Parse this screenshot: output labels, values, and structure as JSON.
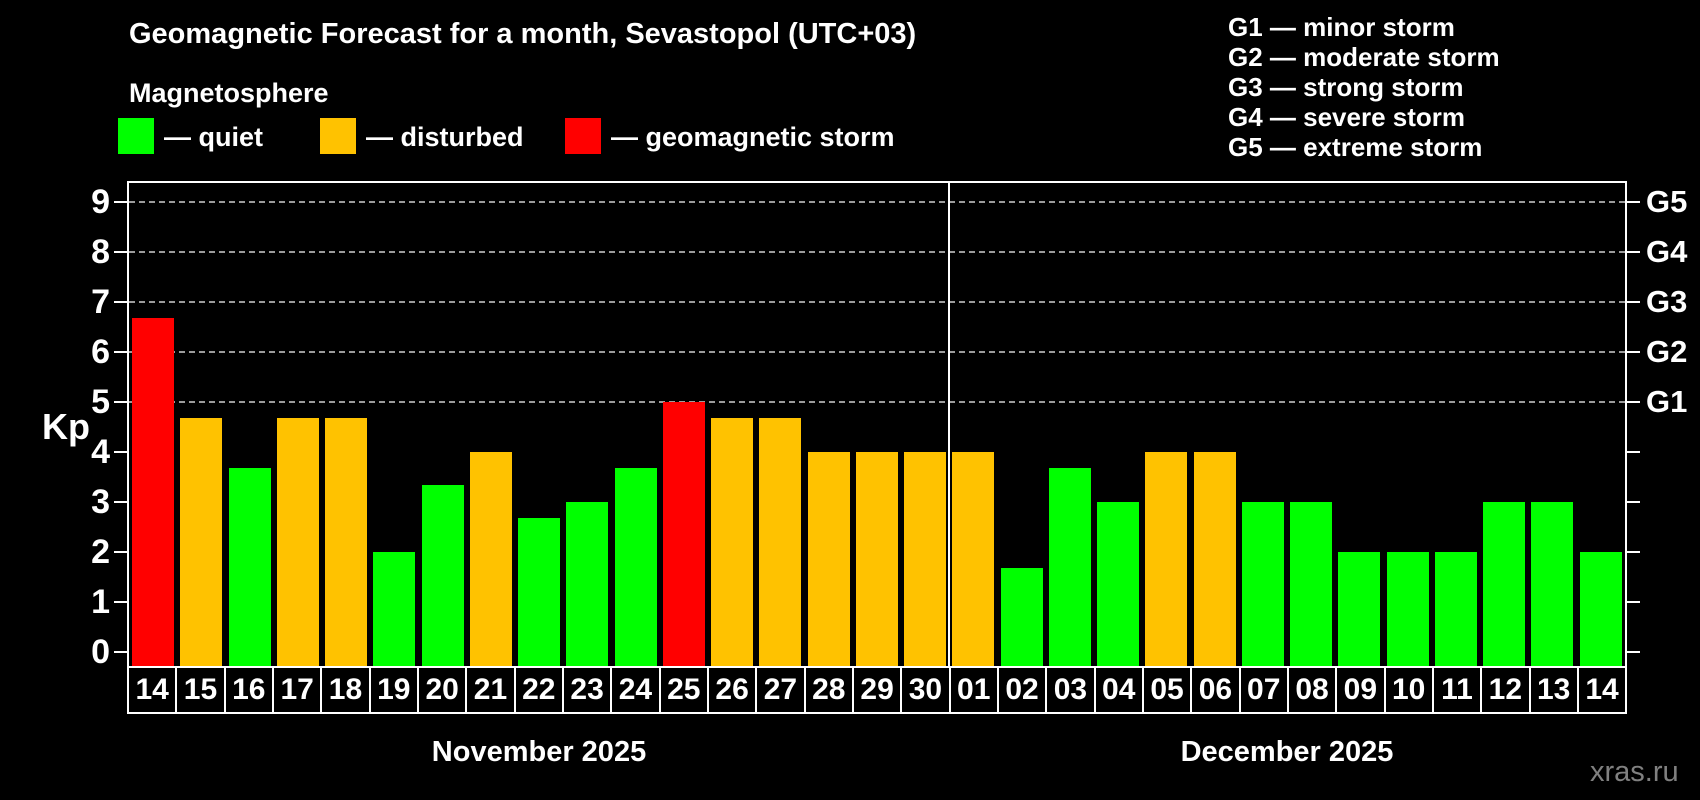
{
  "title": "Geomagnetic Forecast for a month, Sevastopol (UTC+03)",
  "subtitle": "Magnetosphere",
  "legend": {
    "items": [
      {
        "key": "quiet",
        "label": "— quiet",
        "color": "#00ff00"
      },
      {
        "key": "disturbed",
        "label": "— disturbed",
        "color": "#ffc200"
      },
      {
        "key": "storm",
        "label": "— geomagnetic storm",
        "color": "#ff0000"
      }
    ]
  },
  "storm_scale_legend": [
    "G1 — minor storm",
    "G2 — moderate storm",
    "G3 — strong storm",
    "G4 — severe storm",
    "G5 — extreme storm"
  ],
  "y_axis": {
    "label": "Kp",
    "ticks": [
      0,
      1,
      2,
      3,
      4,
      5,
      6,
      7,
      8,
      9
    ]
  },
  "right_axis": {
    "labels": [
      {
        "text": "G1",
        "kp": 5
      },
      {
        "text": "G2",
        "kp": 6
      },
      {
        "text": "G3",
        "kp": 7
      },
      {
        "text": "G4",
        "kp": 8
      },
      {
        "text": "G5",
        "kp": 9
      }
    ]
  },
  "months": [
    {
      "label": "November 2025",
      "count": 17
    },
    {
      "label": "December 2025",
      "count": 14
    }
  ],
  "watermark": "xras.ru",
  "chart_data": {
    "type": "bar",
    "title": "Geomagnetic Forecast for a month, Sevastopol (UTC+03)",
    "xlabel": "",
    "ylabel": "Kp",
    "ylim": [
      0,
      9
    ],
    "gridlines_kp": [
      5,
      6,
      7,
      8,
      9
    ],
    "legend_position": "top-left",
    "grid": "dashed horizontal at G-storm levels only",
    "categories": [
      "14",
      "15",
      "16",
      "17",
      "18",
      "19",
      "20",
      "21",
      "22",
      "23",
      "24",
      "25",
      "26",
      "27",
      "28",
      "29",
      "30",
      "01",
      "02",
      "03",
      "04",
      "05",
      "06",
      "07",
      "08",
      "09",
      "10",
      "11",
      "12",
      "13",
      "14"
    ],
    "series": [
      {
        "name": "Kp forecast",
        "values": [
          6.67,
          4.67,
          3.67,
          4.67,
          4.67,
          2.0,
          3.33,
          4.0,
          2.67,
          3.0,
          3.67,
          5.0,
          4.67,
          4.67,
          4.0,
          4.0,
          4.0,
          4.0,
          1.67,
          3.67,
          3.0,
          4.0,
          4.0,
          3.0,
          3.0,
          2.0,
          2.0,
          2.0,
          3.0,
          3.0,
          2.0
        ],
        "statuses": [
          "storm",
          "disturbed",
          "quiet",
          "disturbed",
          "disturbed",
          "quiet",
          "quiet",
          "disturbed",
          "quiet",
          "quiet",
          "quiet",
          "storm",
          "disturbed",
          "disturbed",
          "disturbed",
          "disturbed",
          "disturbed",
          "disturbed",
          "quiet",
          "quiet",
          "quiet",
          "disturbed",
          "disturbed",
          "quiet",
          "quiet",
          "quiet",
          "quiet",
          "quiet",
          "quiet",
          "quiet",
          "quiet"
        ]
      }
    ]
  }
}
